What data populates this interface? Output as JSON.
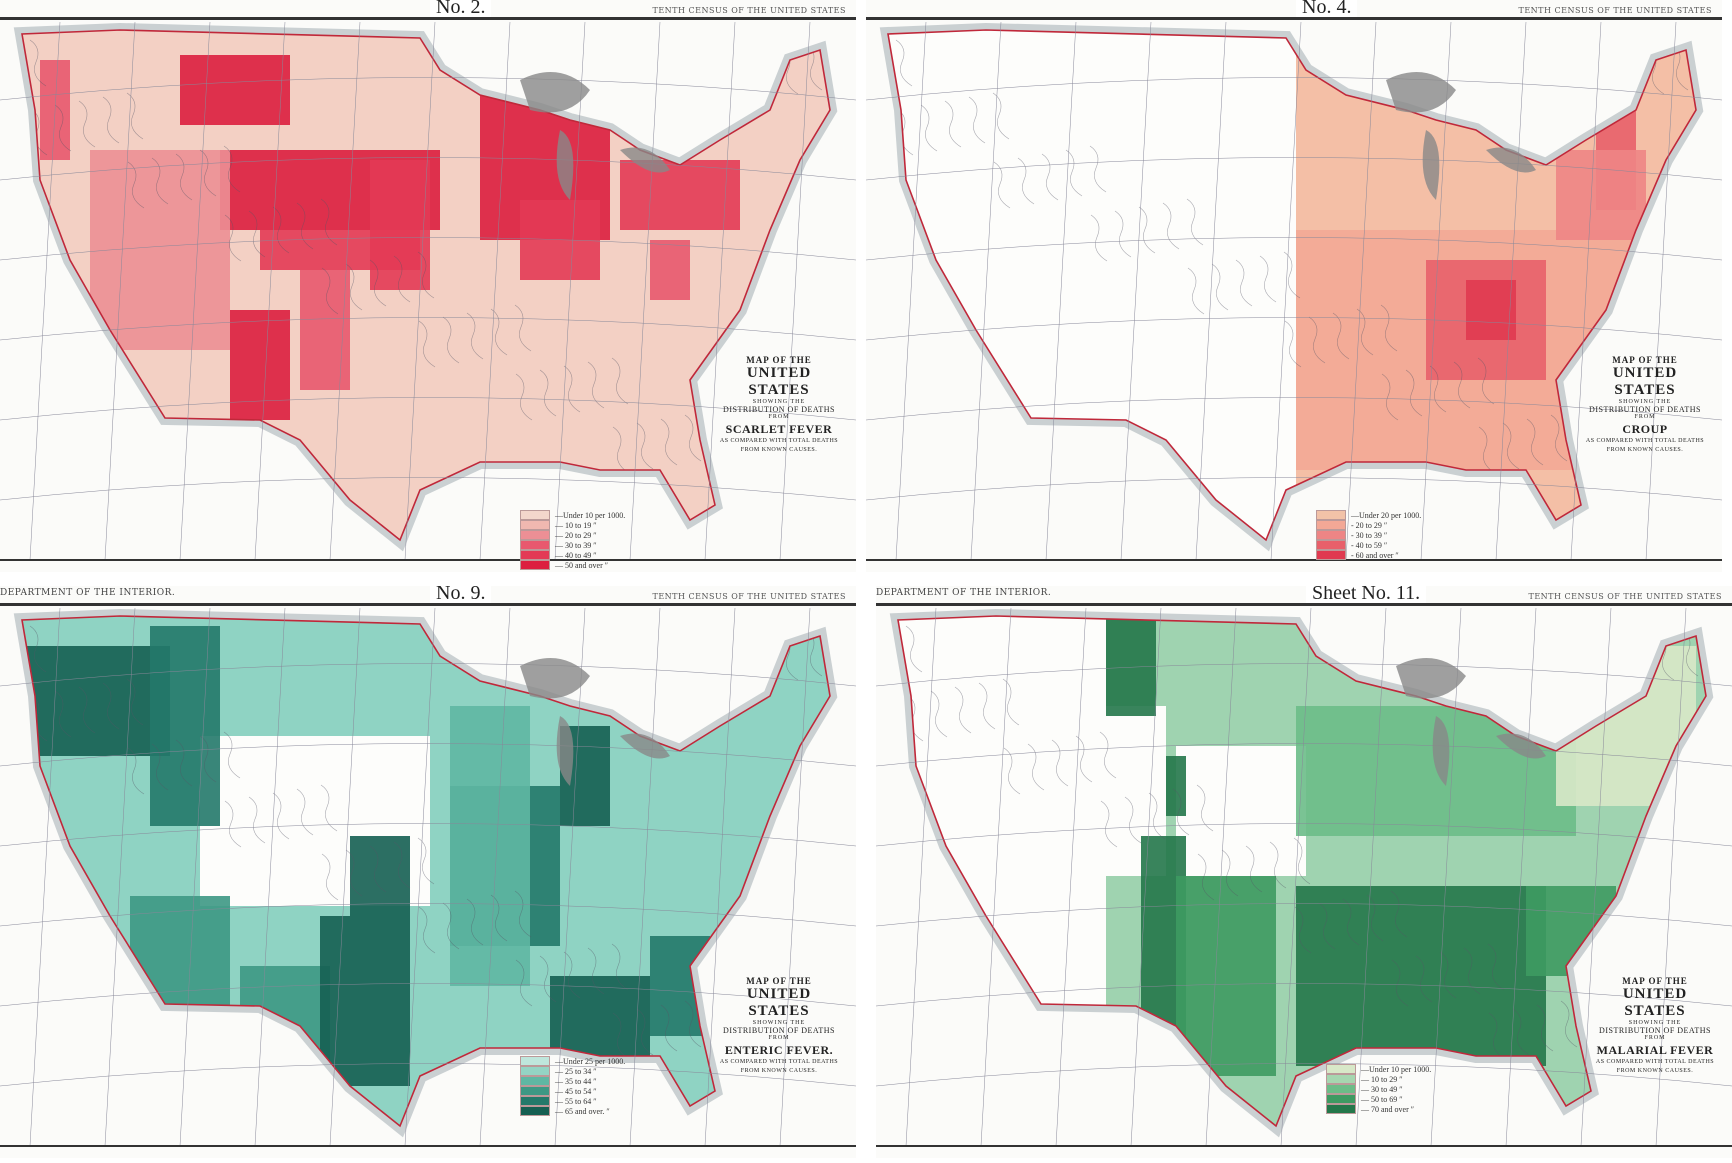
{
  "panels": [
    {
      "sheet": "No. 2.",
      "header_left": "",
      "header_right": "TENTH CENSUS OF THE UNITED STATES",
      "title": {
        "l1": "MAP OF THE",
        "l2": "UNITED STATES",
        "l3": "SHOWING THE",
        "l4": "DISTRIBUTION OF DEATHS",
        "l5": "FROM",
        "disease": "SCARLET FEVER",
        "l7": "AS COMPARED WITH TOTAL DEATHS",
        "l8": "FROM KNOWN CAUSES."
      },
      "legend": [
        {
          "label": "—Under 10 per 1000.",
          "color": "#f3d6cc"
        },
        {
          "label": "— 10 to 19  ″",
          "color": "#f0b8b0"
        },
        {
          "label": "— 20 to 29  ″",
          "color": "#ec8f95"
        },
        {
          "label": "— 30 to 39  ″",
          "color": "#e8586e"
        },
        {
          "label": "— 40 to 49  ″",
          "color": "#e33a55"
        },
        {
          "label": "— 50 and over ″",
          "color": "#dc1e3f"
        }
      ],
      "base_color": "#f3d0c4",
      "accent_color": "#e02a4a"
    },
    {
      "sheet": "No. 4.",
      "header_left": "",
      "header_right": "TENTH CENSUS OF THE UNITED STATES",
      "title": {
        "l1": "MAP OF THE",
        "l2": "UNITED STATES",
        "l3": "SHOWING THE",
        "l4": "DISTRIBUTION OF DEATHS",
        "l5": "FROM",
        "disease": "CROUP",
        "l7": "AS COMPARED WITH TOTAL DEATHS",
        "l8": "FROM KNOWN CAUSES."
      },
      "legend": [
        {
          "label": "—Under 20 per 1000.",
          "color": "#f2c2a8"
        },
        {
          "label": "- 20 to 29  ″",
          "color": "#f3a896"
        },
        {
          "label": "- 30 to 39  ″",
          "color": "#ee8585"
        },
        {
          "label": "- 40 to 59  ″",
          "color": "#e8606a"
        },
        {
          "label": "- 60 and over ″",
          "color": "#e03a50"
        }
      ],
      "base_color": "#f4bfa6",
      "accent_color": "#e8606a"
    },
    {
      "sheet": "No. 9.",
      "header_left": "DEPARTMENT OF THE INTERIOR.",
      "header_right": "TENTH CENSUS OF THE UNITED STATES",
      "title": {
        "l1": "MAP OF THE",
        "l2": "UNITED STATES",
        "l3": "SHOWING THE",
        "l4": "DISTRIBUTION OF DEATHS",
        "l5": "FROM",
        "disease": "ENTERIC FEVER.",
        "l7": "AS COMPARED WITH TOTAL DEATHS",
        "l8": "FROM KNOWN CAUSES."
      },
      "legend": [
        {
          "label": "—Under 25 per 1000.",
          "color": "#bfe6dc"
        },
        {
          "label": "— 25 to 34  ″",
          "color": "#94d4c4"
        },
        {
          "label": "— 35 to 44  ″",
          "color": "#5fb7a3"
        },
        {
          "label": "— 45 to 54  ″",
          "color": "#3d9884"
        },
        {
          "label": "— 55 to 64  ″",
          "color": "#23796a"
        },
        {
          "label": "— 65 and over. ″",
          "color": "#155f52"
        }
      ],
      "base_color": "#8fd3c3",
      "accent_color": "#2a7d6c"
    },
    {
      "sheet": "Sheet No. 11.",
      "header_left": "DEPARTMENT OF THE INTERIOR.",
      "header_right": "TENTH CENSUS OF THE UNITED STATES",
      "title": {
        "l1": "MAP OF THE",
        "l2": "UNITED STATES",
        "l3": "SHOWING THE",
        "l4": "DISTRIBUTION OF DEATHS",
        "l5": "FROM",
        "disease": "MALARIAL FEVER",
        "l7": "AS COMPARED WITH TOTAL DEATHS",
        "l8": "FROM KNOWN CAUSES."
      },
      "legend": [
        {
          "label": "—Under 10 per 1000.",
          "color": "#d8e8c8"
        },
        {
          "label": "— 10 to 29  ″",
          "color": "#a6d6b0"
        },
        {
          "label": "— 30 to 49  ″",
          "color": "#6cbc88"
        },
        {
          "label": "— 50 to 69  ″",
          "color": "#3e9a62"
        },
        {
          "label": "— 70 and over ″",
          "color": "#24774a"
        }
      ],
      "base_color": "#9fd3b0",
      "accent_color": "#2f8a55"
    }
  ]
}
